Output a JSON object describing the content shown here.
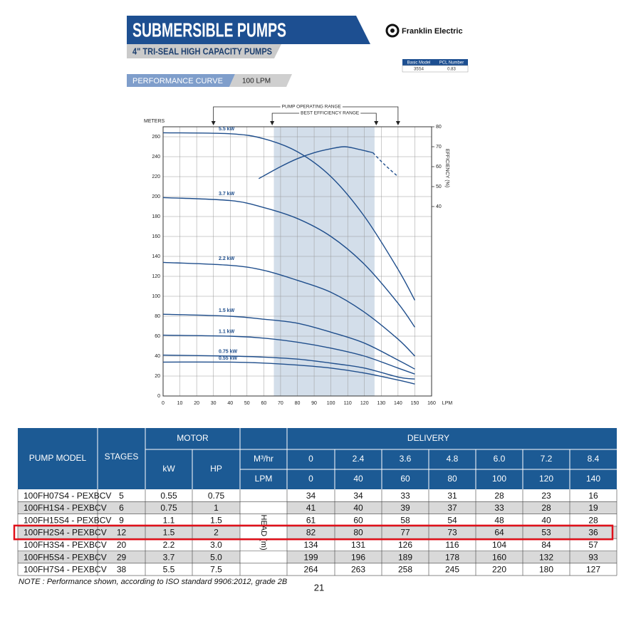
{
  "header": {
    "title": "SUBMERSIBLE PUMPS",
    "subtitle": "4\" TRI-SEAL HIGH CAPACITY PUMPS",
    "section": "PERFORMANCE CURVE",
    "flow": "100 LPM",
    "brand": "Franklin Electric",
    "model_table": {
      "columns": [
        "Basic Model",
        "PCL Number"
      ],
      "row": [
        "35S4",
        "0.83"
      ]
    }
  },
  "chart_data": {
    "type": "line",
    "x_label": "LPM",
    "y_label": "METERS",
    "y2_label": "EFFICIENCY (%)",
    "x": [
      0,
      40,
      60,
      80,
      100,
      120,
      140,
      150
    ],
    "series": [
      {
        "name": "5.5 kW",
        "color": "#1f4e8c",
        "values": [
          264,
          263,
          258,
          245,
          220,
          180,
          127,
          96
        ]
      },
      {
        "name": "3.7 kW",
        "color": "#1f4e8c",
        "values": [
          199,
          196,
          189,
          178,
          160,
          132,
          93,
          69
        ]
      },
      {
        "name": "2.2 kW",
        "color": "#1f4e8c",
        "values": [
          134,
          131,
          126,
          116,
          104,
          84,
          57,
          40
        ]
      },
      {
        "name": "1.5 kW",
        "color": "#1f4e8c",
        "values": [
          82,
          80,
          77,
          73,
          64,
          53,
          36,
          27
        ]
      },
      {
        "name": "1.1 kW",
        "color": "#1f4e8c",
        "values": [
          61,
          60,
          58,
          54,
          48,
          40,
          28,
          22
        ]
      },
      {
        "name": "0.75 kW",
        "color": "#1f4e8c",
        "values": [
          41,
          40,
          39,
          37,
          33,
          28,
          19,
          17
        ]
      },
      {
        "name": "0.55 kW",
        "color": "#1f4e8c",
        "values": [
          34,
          34,
          33,
          31,
          28,
          23,
          16,
          12
        ]
      }
    ],
    "efficiency_x": [
      57,
      70,
      80,
      90,
      100,
      108,
      115,
      125,
      132,
      140
    ],
    "efficiency_series": [
      {
        "axis": "y2",
        "color": "#1f4e8c",
        "dashed": false,
        "values": [
          54,
          60,
          64,
          67,
          69,
          70,
          69,
          67,
          null,
          null
        ]
      },
      {
        "axis": "y2",
        "color": "#1f4e8c",
        "dashed": true,
        "values": [
          null,
          null,
          null,
          null,
          null,
          null,
          null,
          67,
          61,
          55
        ]
      }
    ],
    "annotations": [
      {
        "text": "PUMP OPERATING RANGE",
        "x": [
          30,
          140
        ]
      },
      {
        "text": "BEST EFFICIENCY RANGE",
        "x": [
          65,
          127
        ]
      }
    ],
    "shaded_range": [
      66,
      126
    ],
    "shade_color": "#d3deea",
    "xlim": [
      0,
      160
    ],
    "xticks": [
      0,
      10,
      20,
      30,
      40,
      50,
      60,
      70,
      80,
      90,
      100,
      110,
      120,
      130,
      140,
      150,
      160
    ],
    "ylim": [
      0,
      270
    ],
    "yticks": [
      0,
      20,
      40,
      60,
      80,
      100,
      120,
      140,
      160,
      180,
      200,
      220,
      240,
      260
    ],
    "y2lim": [
      -55,
      80
    ],
    "y2ticks": [
      40,
      50,
      60,
      70,
      80
    ],
    "grid": true
  },
  "table": {
    "headers": {
      "model": "PUMP MODEL",
      "stages": "STAGES",
      "motor": "MOTOR",
      "kw": "kW",
      "hp": "HP",
      "delivery": "DELIVERY",
      "m3hr": "M³/hr",
      "lpm": "LPM",
      "head": "HEAD (m)"
    },
    "m3hr": [
      "0",
      "2.4",
      "3.6",
      "4.8",
      "6.0",
      "7.2",
      "8.4"
    ],
    "lpm": [
      "0",
      "40",
      "60",
      "80",
      "100",
      "120",
      "140"
    ],
    "rows": [
      [
        "100FH07S4 - PEXBCV",
        "5",
        "0.55",
        "0.75",
        "34",
        "34",
        "33",
        "31",
        "28",
        "23",
        "16"
      ],
      [
        "100FH1S4 - PEXBCV",
        "6",
        "0.75",
        "1",
        "41",
        "40",
        "39",
        "37",
        "33",
        "28",
        "19"
      ],
      [
        "100FH15S4 - PEXBCV",
        "9",
        "1.1",
        "1.5",
        "61",
        "60",
        "58",
        "54",
        "48",
        "40",
        "28"
      ],
      [
        "100FH2S4 - PEXBCV",
        "12",
        "1.5",
        "2",
        "82",
        "80",
        "77",
        "73",
        "64",
        "53",
        "36"
      ],
      [
        "100FH3S4 - PEXBCV",
        "20",
        "2.2",
        "3.0",
        "134",
        "131",
        "126",
        "116",
        "104",
        "84",
        "57"
      ],
      [
        "100FH5S4 - PEXBCV",
        "29",
        "3.7",
        "5.0",
        "199",
        "196",
        "189",
        "178",
        "160",
        "132",
        "93"
      ],
      [
        "100FH7S4 - PEXBCV",
        "38",
        "5.5",
        "7.5",
        "264",
        "263",
        "258",
        "245",
        "220",
        "180",
        "127"
      ]
    ],
    "highlight_row": 3,
    "highlight_color": "#e0101a"
  },
  "note": "NOTE : Performance shown, according to ISO standard 9906:2012, grade 2B",
  "page_number": "21"
}
